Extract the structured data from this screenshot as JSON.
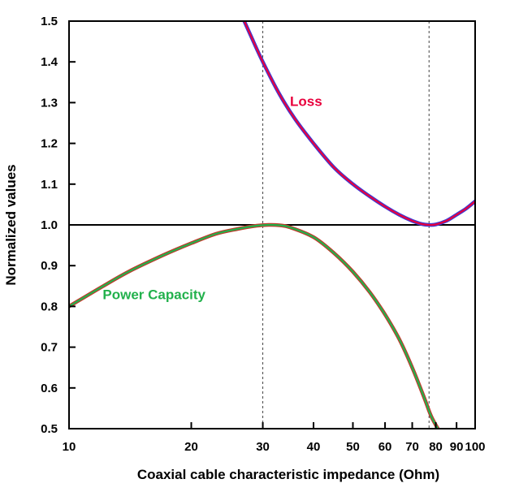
{
  "chart_data": {
    "type": "line",
    "title": "",
    "xlabel": "Coaxial cable characteristic impedance (Ohm)",
    "ylabel": "Normalized values",
    "xscale": "log",
    "xlim": [
      10,
      100
    ],
    "ylim": [
      0.5,
      1.5
    ],
    "grid": false,
    "x_ticks": [
      10,
      20,
      30,
      40,
      50,
      60,
      70,
      80,
      90,
      100
    ],
    "x_tick_labels": [
      "10",
      "20",
      "30",
      "40",
      "50",
      "60",
      "70",
      "80",
      "90",
      "100"
    ],
    "y_ticks": [
      0.5,
      0.6,
      0.7,
      0.8,
      0.9,
      1.0,
      1.1,
      1.2,
      1.3,
      1.4,
      1.5
    ],
    "y_tick_labels": [
      "0.5",
      "0.6",
      "0.7",
      "0.8",
      "0.9",
      "1.0",
      "1.1",
      "1.2",
      "1.3",
      "1.4",
      "1.5"
    ],
    "reference_lines": {
      "horizontal": [
        1.0
      ],
      "vertical_dashed": [
        30,
        77
      ]
    },
    "series": [
      {
        "name": "Loss",
        "color": "#e8003d",
        "outline_color": "#3b3bd6",
        "x": [
          27,
          28,
          30,
          33,
          36,
          40,
          45,
          50,
          55,
          60,
          65,
          70,
          74,
          77,
          80,
          85,
          90,
          95,
          100
        ],
        "y": [
          1.5,
          1.465,
          1.4,
          1.32,
          1.26,
          1.2,
          1.14,
          1.1,
          1.07,
          1.045,
          1.025,
          1.01,
          1.002,
          1.0,
          1.001,
          1.01,
          1.025,
          1.04,
          1.058
        ]
      },
      {
        "name": "Power Capacity",
        "color": "#22b14c",
        "outline_color": "#c0392b",
        "x": [
          10,
          12,
          14,
          17,
          20,
          23,
          26,
          29,
          31,
          33,
          35,
          40,
          45,
          50,
          55,
          60,
          65,
          70,
          75,
          78,
          81.5
        ],
        "y": [
          0.8,
          0.847,
          0.885,
          0.925,
          0.955,
          0.978,
          0.99,
          0.998,
          1.0,
          0.999,
          0.994,
          0.97,
          0.93,
          0.885,
          0.835,
          0.78,
          0.72,
          0.65,
          0.575,
          0.53,
          0.495
        ]
      }
    ],
    "annotations": [
      {
        "text": "Loss",
        "series": "Loss",
        "color": "#e8003d"
      },
      {
        "text": "Power Capacity",
        "series": "Power Capacity",
        "color": "#22b14c"
      }
    ]
  }
}
